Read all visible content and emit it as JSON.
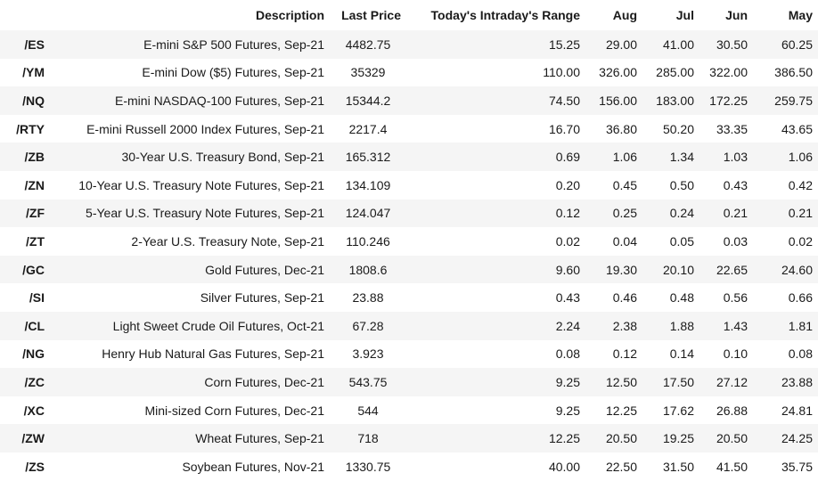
{
  "headers": [
    "",
    "Description",
    "Last Price",
    "Today's Intraday's Range",
    "Aug",
    "Jul",
    "Jun",
    "May"
  ],
  "rows": [
    [
      "/ES",
      "E-mini S&P 500 Futures, Sep-21",
      "4482.75",
      "15.25",
      "29.00",
      "41.00",
      "30.50",
      "60.25"
    ],
    [
      "/YM",
      "E-mini Dow ($5) Futures, Sep-21",
      "35329",
      "110.00",
      "326.00",
      "285.00",
      "322.00",
      "386.50"
    ],
    [
      "/NQ",
      "E-mini NASDAQ-100 Futures, Sep-21",
      "15344.2",
      "74.50",
      "156.00",
      "183.00",
      "172.25",
      "259.75"
    ],
    [
      "/RTY",
      "E-mini Russell 2000 Index Futures, Sep-21",
      "2217.4",
      "16.70",
      "36.80",
      "50.20",
      "33.35",
      "43.65"
    ],
    [
      "/ZB",
      "30-Year U.S. Treasury Bond, Sep-21",
      "165.312",
      "0.69",
      "1.06",
      "1.34",
      "1.03",
      "1.06"
    ],
    [
      "/ZN",
      "10-Year U.S. Treasury Note Futures, Sep-21",
      "134.109",
      "0.20",
      "0.45",
      "0.50",
      "0.43",
      "0.42"
    ],
    [
      "/ZF",
      "5-Year U.S. Treasury Note Futures, Sep-21",
      "124.047",
      "0.12",
      "0.25",
      "0.24",
      "0.21",
      "0.21"
    ],
    [
      "/ZT",
      "2-Year U.S. Treasury Note, Sep-21",
      "110.246",
      "0.02",
      "0.04",
      "0.05",
      "0.03",
      "0.02"
    ],
    [
      "/GC",
      "Gold Futures, Dec-21",
      "1808.6",
      "9.60",
      "19.30",
      "20.10",
      "22.65",
      "24.60"
    ],
    [
      "/SI",
      "Silver Futures, Sep-21",
      "23.88",
      "0.43",
      "0.46",
      "0.48",
      "0.56",
      "0.66"
    ],
    [
      "/CL",
      "Light Sweet Crude Oil Futures, Oct-21",
      "67.28",
      "2.24",
      "2.38",
      "1.88",
      "1.43",
      "1.81"
    ],
    [
      "/NG",
      "Henry Hub Natural Gas Futures, Sep-21",
      "3.923",
      "0.08",
      "0.12",
      "0.14",
      "0.10",
      "0.08"
    ],
    [
      "/ZC",
      "Corn Futures, Dec-21",
      "543.75",
      "9.25",
      "12.50",
      "17.50",
      "27.12",
      "23.88"
    ],
    [
      "/XC",
      "Mini-sized Corn Futures, Dec-21",
      "544",
      "9.25",
      "12.25",
      "17.62",
      "26.88",
      "24.81"
    ],
    [
      "/ZW",
      "Wheat Futures, Sep-21",
      "718",
      "12.25",
      "20.50",
      "19.25",
      "20.50",
      "24.25"
    ],
    [
      "/ZS",
      "Soybean Futures, Nov-21",
      "1330.75",
      "40.00",
      "22.50",
      "31.50",
      "41.50",
      "35.75"
    ]
  ]
}
